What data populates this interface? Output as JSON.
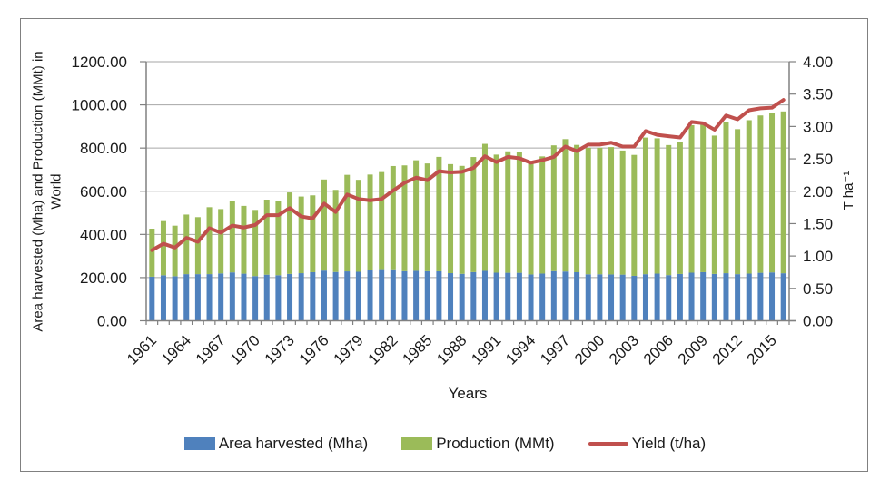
{
  "chart_data": {
    "type": "bar",
    "subtype": "stacked-bars-with-line-overlay",
    "title": "",
    "grid": true,
    "legend_position": "bottom",
    "categories": [
      1961,
      1962,
      1963,
      1964,
      1965,
      1966,
      1967,
      1968,
      1969,
      1970,
      1971,
      1972,
      1973,
      1974,
      1975,
      1976,
      1977,
      1978,
      1979,
      1980,
      1981,
      1982,
      1983,
      1984,
      1985,
      1986,
      1987,
      1988,
      1989,
      1990,
      1991,
      1992,
      1993,
      1994,
      1995,
      1996,
      1997,
      1998,
      1999,
      2000,
      2001,
      2002,
      2003,
      2004,
      2005,
      2006,
      2007,
      2008,
      2009,
      2010,
      2011,
      2012,
      2013,
      2014,
      2015,
      2016
    ],
    "series": [
      {
        "name": "Area harvested (Mha)",
        "type": "bar",
        "axis": "left",
        "color": "#4F81BD",
        "values": [
          204.2,
          210.8,
          206.5,
          216.0,
          216.0,
          216.1,
          219.4,
          224.1,
          218.2,
          207.0,
          213.5,
          211.0,
          217.1,
          220.5,
          225.0,
          232.6,
          226.0,
          228.9,
          227.0,
          237.1,
          239.2,
          238.5,
          229.8,
          231.5,
          229.7,
          229.3,
          220.6,
          217.5,
          225.4,
          231.3,
          222.8,
          222.4,
          222.3,
          214.6,
          218.7,
          230.0,
          228.2,
          224.9,
          215.3,
          215.4,
          214.6,
          213.8,
          208.2,
          215.8,
          218.5,
          211.5,
          216.8,
          222.8,
          225.1,
          216.9,
          220.4,
          215.9,
          218.5,
          222.3,
          224.0,
          220.1
        ]
      },
      {
        "name": "Production (MMt)",
        "type": "bar",
        "axis": "left",
        "color": "#9BBB59",
        "values": [
          222.4,
          250.9,
          234.0,
          276.0,
          264.0,
          310.0,
          298.0,
          330.0,
          314.0,
          306.5,
          347.6,
          343.3,
          377.4,
          355.0,
          356.0,
          421.8,
          380.2,
          447.1,
          425.9,
          440.2,
          449.6,
          478.3,
          490.0,
          511.9,
          499.0,
          529.8,
          505.0,
          500.0,
          533.0,
          588.1,
          546.8,
          562.4,
          558.5,
          524.4,
          542.7,
          582.5,
          613.2,
          589.7,
          585.8,
          585.7,
          589.8,
          574.7,
          560.1,
          632.9,
          626.6,
          602.4,
          612.6,
          683.2,
          686.8,
          640.8,
          699.4,
          671.5,
          710.5,
          728.7,
          737.0,
          749.5
        ]
      },
      {
        "name": "Yield (t/ha)",
        "type": "line",
        "axis": "right",
        "color": "#C0504D",
        "values": [
          1.09,
          1.19,
          1.13,
          1.28,
          1.22,
          1.43,
          1.36,
          1.47,
          1.44,
          1.48,
          1.63,
          1.63,
          1.74,
          1.61,
          1.58,
          1.81,
          1.68,
          1.95,
          1.88,
          1.86,
          1.88,
          2.01,
          2.13,
          2.21,
          2.17,
          2.31,
          2.29,
          2.3,
          2.36,
          2.54,
          2.45,
          2.53,
          2.51,
          2.44,
          2.48,
          2.53,
          2.69,
          2.62,
          2.72,
          2.72,
          2.75,
          2.69,
          2.69,
          2.93,
          2.87,
          2.85,
          2.83,
          3.07,
          3.05,
          2.95,
          3.17,
          3.11,
          3.25,
          3.28,
          3.29,
          3.41
        ]
      }
    ],
    "axes": {
      "left": {
        "title": "Area harvested (Mha) and Production (MMt) in World",
        "min": 0,
        "max": 1200,
        "step": 200,
        "tick_labels": [
          "0.00",
          "200.00",
          "400.00",
          "600.00",
          "800.00",
          "1000.00",
          "1200.00"
        ]
      },
      "right": {
        "title": "T ha⁻¹",
        "min": 0,
        "max": 4,
        "step": 0.5,
        "tick_labels": [
          "0.00",
          "0.50",
          "1.00",
          "1.50",
          "2.00",
          "2.50",
          "3.00",
          "3.50",
          "4.00"
        ]
      },
      "x": {
        "title": "Years",
        "label_every": 3,
        "tick_labels": [
          "1961",
          "1964",
          "1967",
          "1970",
          "1973",
          "1976",
          "1979",
          "1982",
          "1985",
          "1988",
          "1991",
          "1994",
          "1997",
          "2000",
          "2003",
          "2006",
          "2009",
          "2012",
          "2015"
        ]
      }
    },
    "colors": {
      "gridline": "#A6A6A6",
      "axis_line": "#808080",
      "tick_mark": "#808080",
      "frame_border": "#808080",
      "text": "#1a1a1a",
      "background": "#ffffff"
    }
  }
}
